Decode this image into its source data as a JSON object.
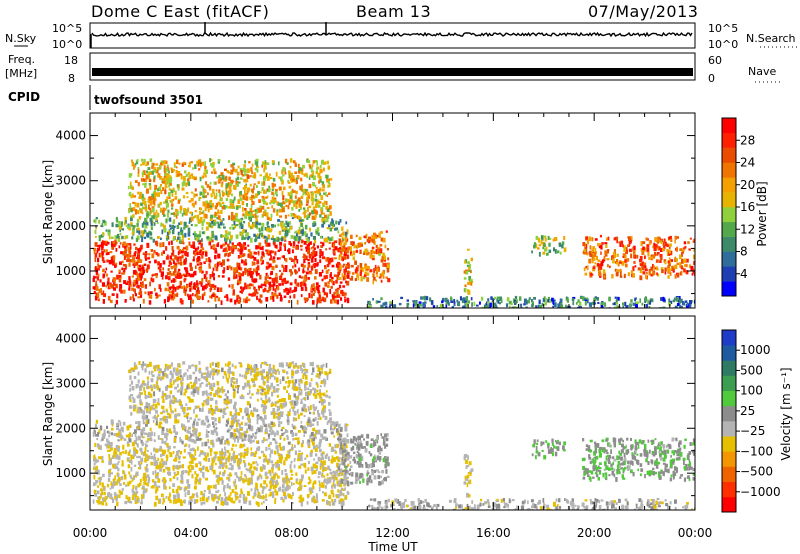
{
  "header": {
    "station": "Dome C East (fitACF)",
    "beam": "Beam 13",
    "date": "07/May/2013"
  },
  "sky_panel": {
    "left_label": "N.Sky",
    "left_ticks": [
      "10^5",
      "10^0"
    ],
    "right_label": "N.Search",
    "right_ticks": [
      "10^5",
      "10^0"
    ]
  },
  "freq_panel": {
    "left_label_line1": "Freq.",
    "left_label_line2": "[MHz]",
    "left_ticks": [
      "18",
      "8"
    ],
    "right_label": "Nave",
    "right_ticks": [
      "60",
      "0"
    ]
  },
  "cpid": {
    "label": "CPID",
    "program": "twofsound 3501"
  },
  "chart_data": [
    {
      "type": "heatmap",
      "title": "",
      "xlabel": "",
      "ylabel": "Slant Range [km]",
      "y_ticks": [
        "1000",
        "2000",
        "3000",
        "4000"
      ],
      "ylim": [
        180,
        4500
      ],
      "colorbar": {
        "label": "Power [dB]",
        "ticks": [
          "4",
          "8",
          "12",
          "16",
          "20",
          "24",
          "28"
        ],
        "range": [
          0,
          32
        ],
        "colors": [
          "#0000ff",
          "#1e3fb4",
          "#2f6e9a",
          "#3d8a6a",
          "#52a84a",
          "#8fd13c",
          "#e6b400",
          "#f4a000",
          "#f07400",
          "#ea4c00",
          "#ff2000",
          "#ff0000"
        ]
      },
      "regions": [
        {
          "t0": 0.1,
          "t1": 10.2,
          "r0": 350,
          "r1": 1700,
          "v": 28
        },
        {
          "t0": 0.1,
          "t1": 10.2,
          "r0": 1700,
          "r1": 2200,
          "v": 12
        },
        {
          "t0": 1.5,
          "t1": 9.5,
          "r0": 2200,
          "r1": 3500,
          "v": 18
        },
        {
          "t0": 9.8,
          "t1": 11.8,
          "r0": 800,
          "r1": 1900,
          "v": 22
        },
        {
          "t0": 14.8,
          "t1": 15.1,
          "r0": 500,
          "r1": 1500,
          "v": 18
        },
        {
          "t0": 17.5,
          "t1": 18.8,
          "r0": 1400,
          "r1": 1800,
          "v": 14
        },
        {
          "t0": 19.5,
          "t1": 24.0,
          "r0": 900,
          "r1": 1800,
          "v": 24
        },
        {
          "t0": 11.0,
          "t1": 24.0,
          "r0": 180,
          "r1": 450,
          "v": 8
        }
      ]
    },
    {
      "type": "heatmap",
      "title": "",
      "xlabel": "Time UT",
      "ylabel": "Slant Range [km]",
      "x_ticks": [
        "00:00",
        "04:00",
        "08:00",
        "12:00",
        "16:00",
        "20:00",
        "00:00"
      ],
      "xlim": [
        0,
        24
      ],
      "y_ticks": [
        "1000",
        "2000",
        "3000",
        "4000"
      ],
      "ylim": [
        180,
        4500
      ],
      "colorbar": {
        "label": "Velocity [m s⁻¹]",
        "ticks": [
          "1000",
          "500",
          "100",
          "25",
          "−25",
          "−100",
          "−500",
          "−1000"
        ],
        "range": [
          -1200,
          1200
        ],
        "colors": [
          "#ff0000",
          "#ff3000",
          "#f06400",
          "#f49600",
          "#e6c000",
          "#b4b4b4",
          "#8c8c8c",
          "#52c83c",
          "#3c9e50",
          "#2f7a64",
          "#1e5aa0",
          "#1f3cc8"
        ]
      },
      "regions": [
        {
          "t0": 0.1,
          "t1": 10.2,
          "r0": 350,
          "r1": 1700,
          "v": -200
        },
        {
          "t0": 0.1,
          "t1": 10.2,
          "r0": 1700,
          "r1": 2200,
          "v": -100
        },
        {
          "t0": 1.5,
          "t1": 9.5,
          "r0": 2200,
          "r1": 3500,
          "v": -150
        },
        {
          "t0": 9.8,
          "t1": 11.8,
          "r0": 800,
          "r1": 1900,
          "v": 50
        },
        {
          "t0": 14.8,
          "t1": 15.1,
          "r0": 500,
          "r1": 1500,
          "v": -200
        },
        {
          "t0": 17.5,
          "t1": 18.8,
          "r0": 1400,
          "r1": 1800,
          "v": 200
        },
        {
          "t0": 19.5,
          "t1": 24.0,
          "r0": 900,
          "r1": 1800,
          "v": 150
        },
        {
          "t0": 11.0,
          "t1": 24.0,
          "r0": 180,
          "r1": 450,
          "v": -60
        }
      ]
    }
  ]
}
